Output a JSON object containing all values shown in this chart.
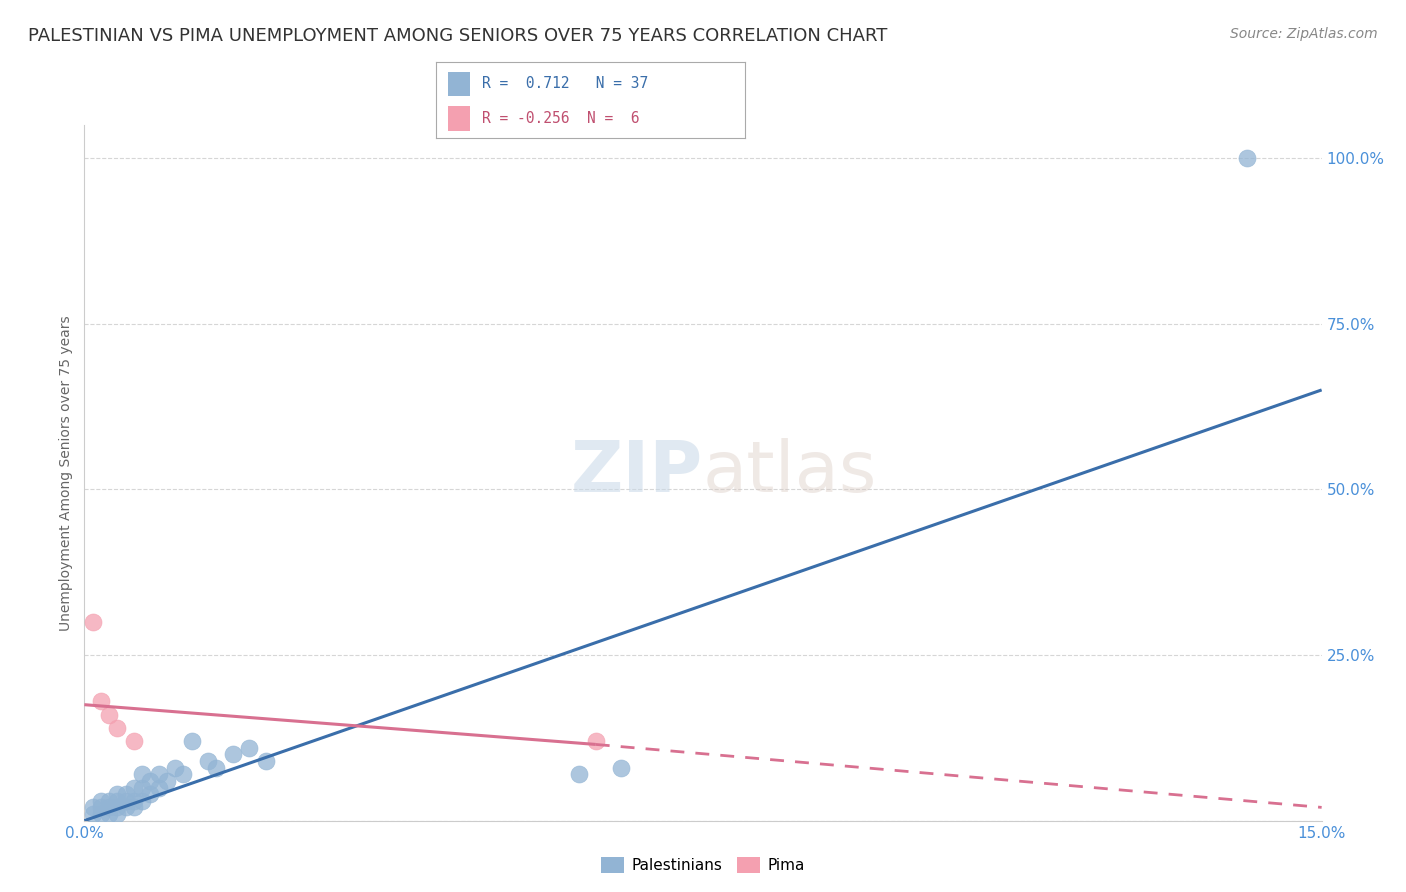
{
  "title": "PALESTINIAN VS PIMA UNEMPLOYMENT AMONG SENIORS OVER 75 YEARS CORRELATION CHART",
  "source": "Source: ZipAtlas.com",
  "ylabel": "Unemployment Among Seniors over 75 years",
  "xlim": [
    0.0,
    0.15
  ],
  "ylim": [
    0.0,
    1.05
  ],
  "yticks": [
    0.0,
    0.25,
    0.5,
    0.75,
    1.0
  ],
  "ytick_labels": [
    "",
    "25.0%",
    "50.0%",
    "75.0%",
    "100.0%"
  ],
  "xticks": [
    0.0,
    0.15
  ],
  "xtick_labels": [
    "0.0%",
    "15.0%"
  ],
  "palestinian_R": 0.712,
  "palestinian_N": 37,
  "pima_R": -0.256,
  "pima_N": 6,
  "palestinian_color": "#92b4d4",
  "pima_color": "#f4a0b0",
  "palestinian_line_color": "#3a6eaa",
  "pima_line_color": "#d87090",
  "background_color": "#ffffff",
  "title_fontsize": 13,
  "source_fontsize": 10,
  "palestinian_scatter_x": [
    0.001,
    0.001,
    0.002,
    0.002,
    0.002,
    0.003,
    0.003,
    0.003,
    0.004,
    0.004,
    0.004,
    0.004,
    0.005,
    0.005,
    0.005,
    0.006,
    0.006,
    0.006,
    0.007,
    0.007,
    0.007,
    0.008,
    0.008,
    0.009,
    0.009,
    0.01,
    0.011,
    0.012,
    0.013,
    0.015,
    0.016,
    0.018,
    0.02,
    0.022,
    0.06,
    0.065,
    0.141
  ],
  "palestinian_scatter_y": [
    0.01,
    0.02,
    0.01,
    0.02,
    0.03,
    0.01,
    0.02,
    0.03,
    0.01,
    0.02,
    0.03,
    0.04,
    0.02,
    0.03,
    0.04,
    0.02,
    0.03,
    0.05,
    0.03,
    0.05,
    0.07,
    0.04,
    0.06,
    0.05,
    0.07,
    0.06,
    0.08,
    0.07,
    0.12,
    0.09,
    0.08,
    0.1,
    0.11,
    0.09,
    0.07,
    0.08,
    1.0
  ],
  "pima_scatter_x": [
    0.001,
    0.002,
    0.003,
    0.004,
    0.006,
    0.062
  ],
  "pima_scatter_y": [
    0.3,
    0.18,
    0.16,
    0.14,
    0.12,
    0.12
  ],
  "palestinian_line_x": [
    0.0,
    0.15
  ],
  "palestinian_line_y": [
    0.0,
    0.65
  ],
  "pima_solid_line_x": [
    0.0,
    0.062
  ],
  "pima_solid_line_y": [
    0.175,
    0.115
  ],
  "pima_dash_line_x": [
    0.062,
    0.15
  ],
  "pima_dash_line_y": [
    0.115,
    0.02
  ],
  "legend_R_pal_text": "R =  0.712   N = 37",
  "legend_R_pima_text": "R = -0.256  N =  6",
  "legend_label_pal": "Palestinians",
  "legend_label_pima": "Pima"
}
